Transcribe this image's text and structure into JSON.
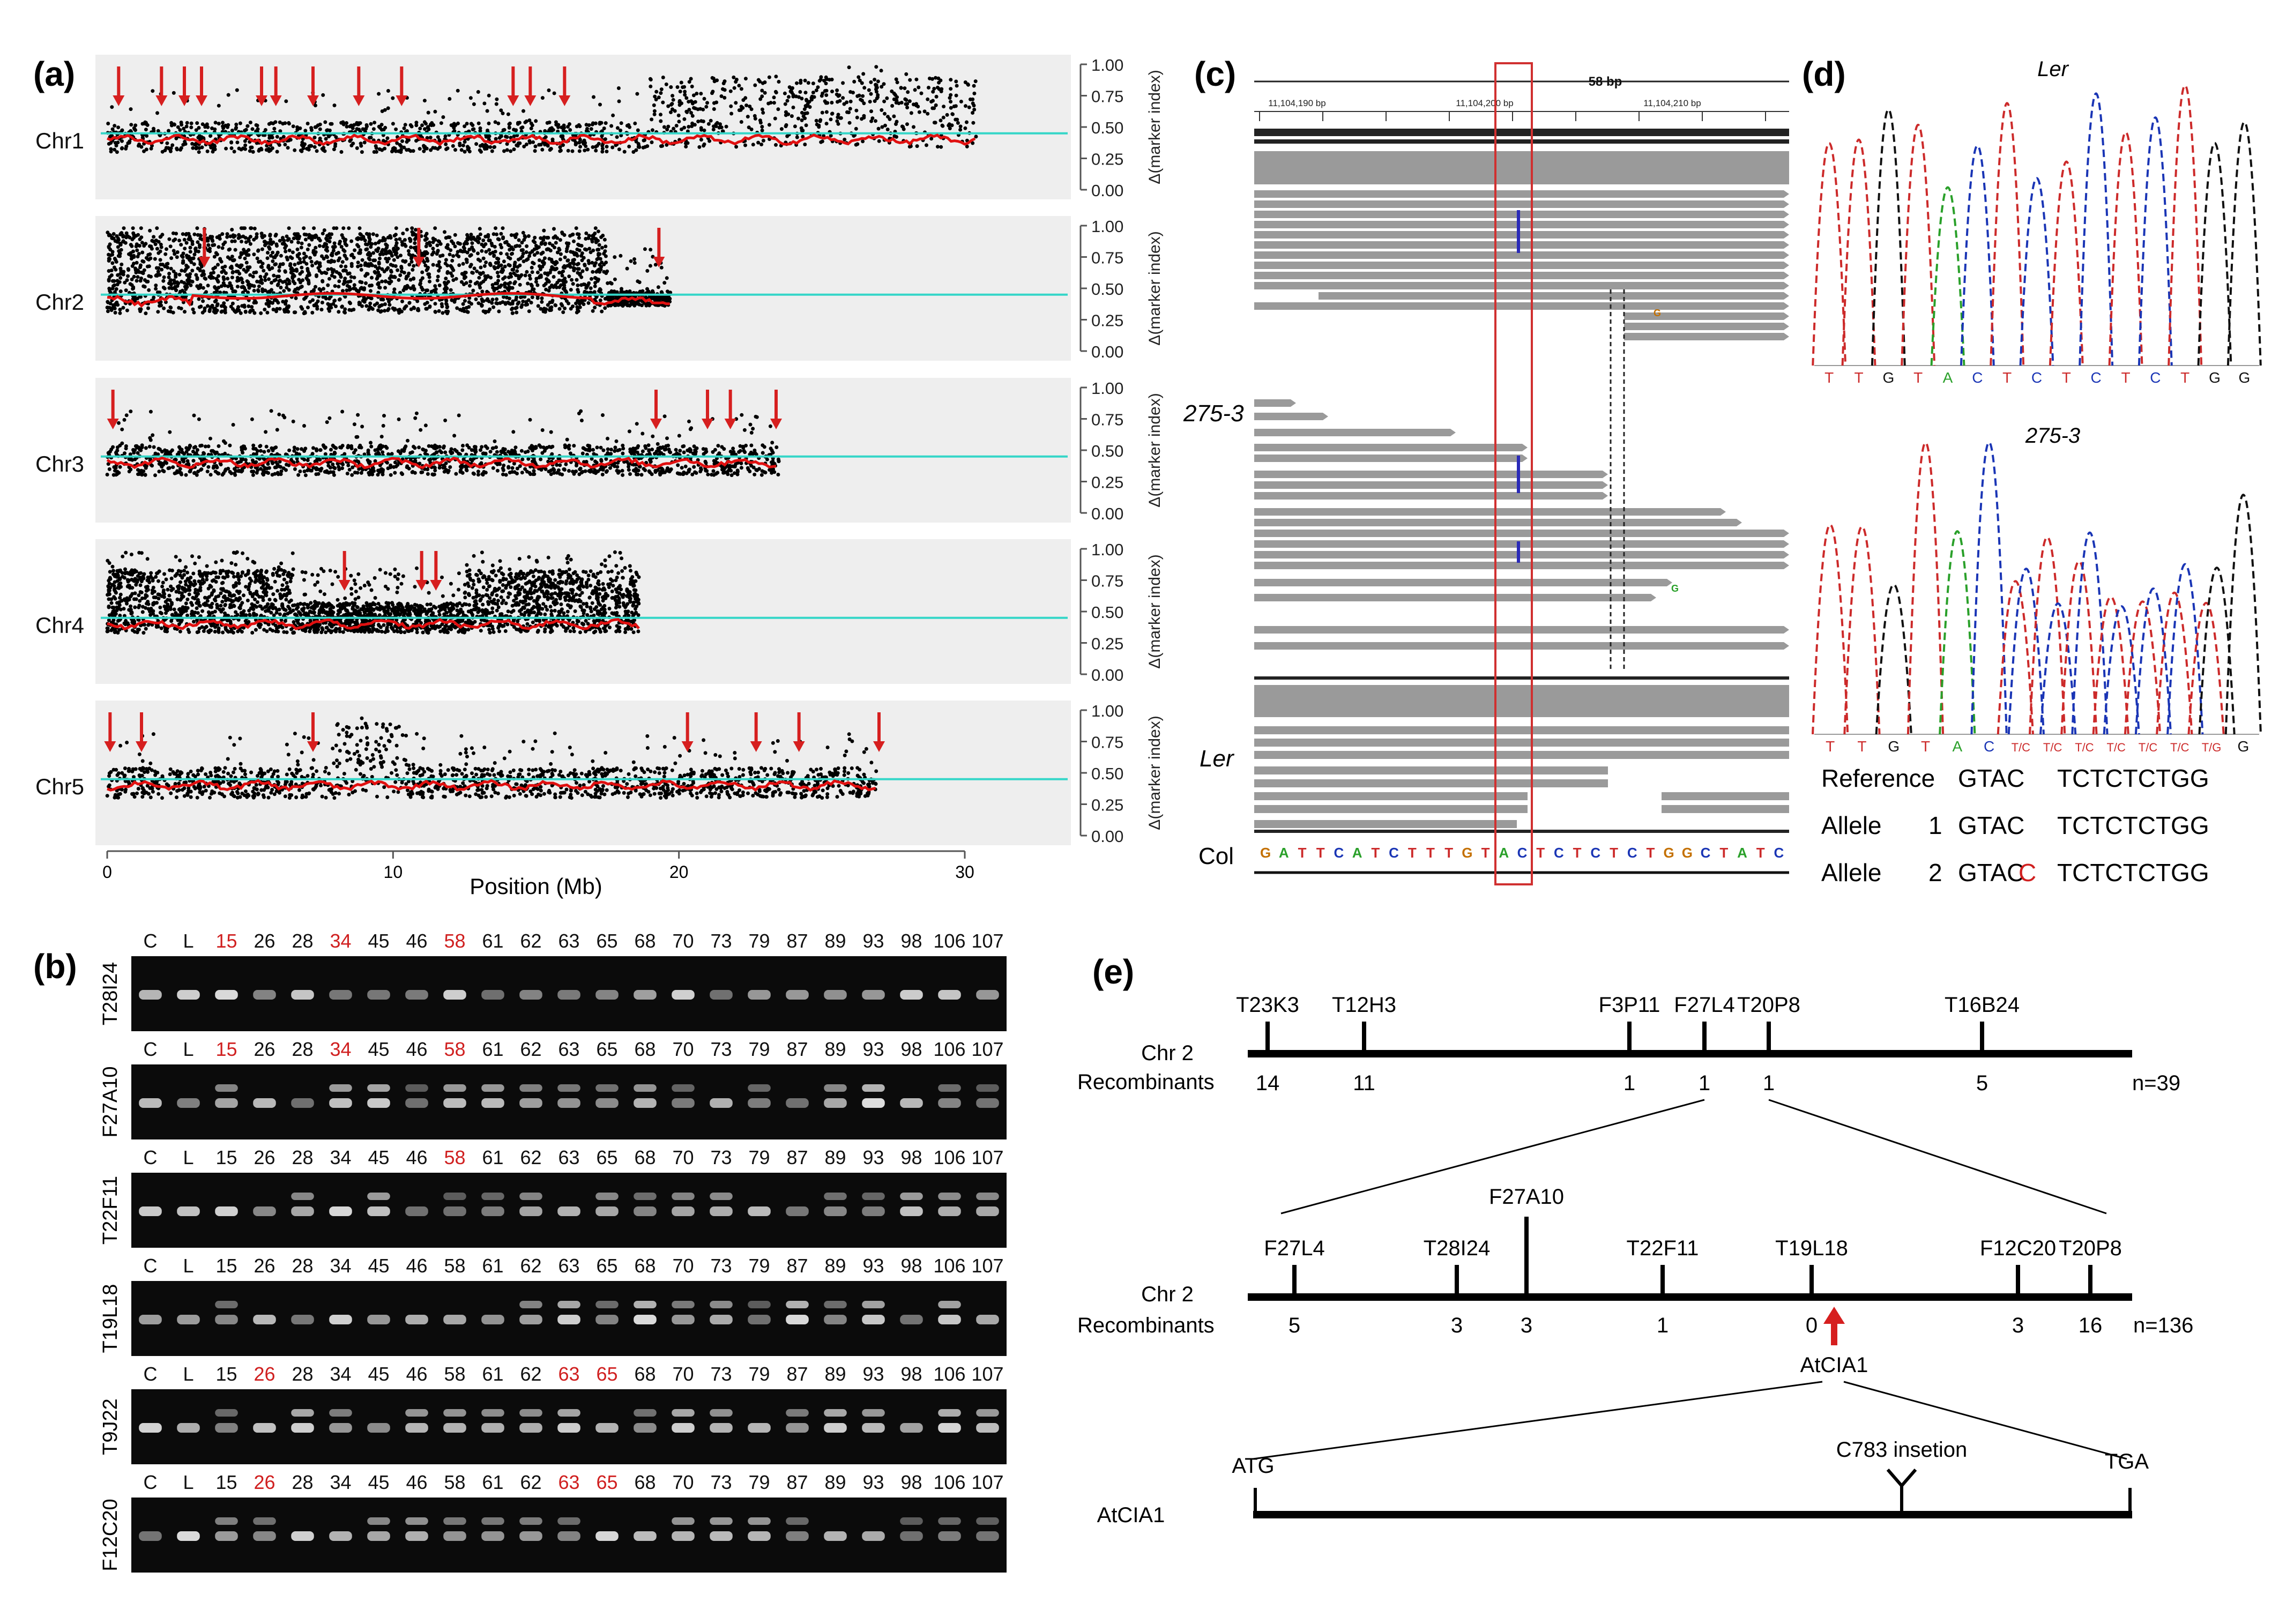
{
  "colors": {
    "marker": "#d61f1f",
    "threshold_line": "#35d6c8",
    "smooth_line": "#e01010",
    "panel_bg": "#eeeeee",
    "gel_bg": "#0b0b0b",
    "band": "#e9e9e9",
    "read_gray": "#9a9a9a",
    "highlight": "#d03030",
    "trace_T": "#cc2a2a",
    "trace_C": "#1a35b5",
    "trace_G": "#111111",
    "trace_A": "#2aa02a"
  },
  "panel_labels": {
    "a": "(a)",
    "b": "(b)",
    "c": "(c)",
    "d": "(d)",
    "e": "(e)"
  },
  "panel_a": {
    "chart_data": {
      "type": "scatter",
      "xlabel": "Position (Mb)",
      "ylabel": "Δ(marker index)",
      "xticks": [
        "0",
        "10",
        "20",
        "30"
      ],
      "xlim": [
        0,
        33
      ],
      "ylim": [
        0,
        1
      ],
      "yticks": [
        "1.00",
        "0.75",
        "0.50",
        "0.25",
        "0.00"
      ],
      "threshold": 0.45,
      "chromosomes": [
        {
          "name": "Chr1",
          "length": 30.4,
          "arrows_mb": [
            0.4,
            1.9,
            2.7,
            3.3,
            5.4,
            5.9,
            7.2,
            8.8,
            10.3,
            14.2,
            14.8,
            16.0
          ]
        },
        {
          "name": "Chr2",
          "length": 19.7,
          "arrows_mb": [
            3.4,
            10.9,
            19.3
          ]
        },
        {
          "name": "Chr3",
          "length": 23.5,
          "arrows_mb": [
            0.2,
            19.2,
            21.0,
            21.8,
            23.4
          ]
        },
        {
          "name": "Chr4",
          "length": 18.6,
          "arrows_mb": [
            8.3,
            11.0,
            11.5
          ]
        },
        {
          "name": "Chr5",
          "length": 26.9,
          "arrows_mb": [
            0.1,
            1.2,
            7.2,
            20.3,
            22.7,
            24.2,
            27.0
          ]
        }
      ]
    }
  },
  "panel_b": {
    "rows": [
      {
        "marker": "T28I24",
        "lanes": [
          {
            "t": "C",
            "r": false
          },
          {
            "t": "L",
            "r": false
          },
          {
            "t": "15",
            "r": true
          },
          {
            "t": "26",
            "r": false
          },
          {
            "t": "28",
            "r": false
          },
          {
            "t": "34",
            "r": true
          },
          {
            "t": "45",
            "r": false
          },
          {
            "t": "46",
            "r": false
          },
          {
            "t": "58",
            "r": true
          },
          {
            "t": "61",
            "r": false
          },
          {
            "t": "62",
            "r": false
          },
          {
            "t": "63",
            "r": false
          },
          {
            "t": "65",
            "r": false
          },
          {
            "t": "68",
            "r": false
          },
          {
            "t": "70",
            "r": false
          },
          {
            "t": "73",
            "r": false
          },
          {
            "t": "79",
            "r": false
          },
          {
            "t": "87",
            "r": false
          },
          {
            "t": "89",
            "r": false
          },
          {
            "t": "93",
            "r": false
          },
          {
            "t": "98",
            "r": false
          },
          {
            "t": "106",
            "r": false
          },
          {
            "t": "107",
            "r": false
          }
        ]
      },
      {
        "marker": "F27A10",
        "lanes": [
          {
            "t": "C",
            "r": false
          },
          {
            "t": "L",
            "r": false
          },
          {
            "t": "15",
            "r": true
          },
          {
            "t": "26",
            "r": false
          },
          {
            "t": "28",
            "r": false
          },
          {
            "t": "34",
            "r": true
          },
          {
            "t": "45",
            "r": false
          },
          {
            "t": "46",
            "r": false
          },
          {
            "t": "58",
            "r": true
          },
          {
            "t": "61",
            "r": false
          },
          {
            "t": "62",
            "r": false
          },
          {
            "t": "63",
            "r": false
          },
          {
            "t": "65",
            "r": false
          },
          {
            "t": "68",
            "r": false
          },
          {
            "t": "70",
            "r": false
          },
          {
            "t": "73",
            "r": false
          },
          {
            "t": "79",
            "r": false
          },
          {
            "t": "87",
            "r": false
          },
          {
            "t": "89",
            "r": false
          },
          {
            "t": "93",
            "r": false
          },
          {
            "t": "98",
            "r": false
          },
          {
            "t": "106",
            "r": false
          },
          {
            "t": "107",
            "r": false
          }
        ]
      },
      {
        "marker": "T22F11",
        "lanes": [
          {
            "t": "C",
            "r": false
          },
          {
            "t": "L",
            "r": false
          },
          {
            "t": "15",
            "r": false
          },
          {
            "t": "26",
            "r": false
          },
          {
            "t": "28",
            "r": false
          },
          {
            "t": "34",
            "r": false
          },
          {
            "t": "45",
            "r": false
          },
          {
            "t": "46",
            "r": false
          },
          {
            "t": "58",
            "r": true
          },
          {
            "t": "61",
            "r": false
          },
          {
            "t": "62",
            "r": false
          },
          {
            "t": "63",
            "r": false
          },
          {
            "t": "65",
            "r": false
          },
          {
            "t": "68",
            "r": false
          },
          {
            "t": "70",
            "r": false
          },
          {
            "t": "73",
            "r": false
          },
          {
            "t": "79",
            "r": false
          },
          {
            "t": "87",
            "r": false
          },
          {
            "t": "89",
            "r": false
          },
          {
            "t": "93",
            "r": false
          },
          {
            "t": "98",
            "r": false
          },
          {
            "t": "106",
            "r": false
          },
          {
            "t": "107",
            "r": false
          }
        ]
      },
      {
        "marker": "T19L18",
        "lanes": [
          {
            "t": "C",
            "r": false
          },
          {
            "t": "L",
            "r": false
          },
          {
            "t": "15",
            "r": false
          },
          {
            "t": "26",
            "r": false
          },
          {
            "t": "28",
            "r": false
          },
          {
            "t": "34",
            "r": false
          },
          {
            "t": "45",
            "r": false
          },
          {
            "t": "46",
            "r": false
          },
          {
            "t": "58",
            "r": false
          },
          {
            "t": "61",
            "r": false
          },
          {
            "t": "62",
            "r": false
          },
          {
            "t": "63",
            "r": false
          },
          {
            "t": "65",
            "r": false
          },
          {
            "t": "68",
            "r": false
          },
          {
            "t": "70",
            "r": false
          },
          {
            "t": "73",
            "r": false
          },
          {
            "t": "79",
            "r": false
          },
          {
            "t": "87",
            "r": false
          },
          {
            "t": "89",
            "r": false
          },
          {
            "t": "93",
            "r": false
          },
          {
            "t": "98",
            "r": false
          },
          {
            "t": "106",
            "r": false
          },
          {
            "t": "107",
            "r": false
          }
        ]
      },
      {
        "marker": "T9J22",
        "lanes": [
          {
            "t": "C",
            "r": false
          },
          {
            "t": "L",
            "r": false
          },
          {
            "t": "15",
            "r": false
          },
          {
            "t": "26",
            "r": true
          },
          {
            "t": "28",
            "r": false
          },
          {
            "t": "34",
            "r": false
          },
          {
            "t": "45",
            "r": false
          },
          {
            "t": "46",
            "r": false
          },
          {
            "t": "58",
            "r": false
          },
          {
            "t": "61",
            "r": false
          },
          {
            "t": "62",
            "r": false
          },
          {
            "t": "63",
            "r": true
          },
          {
            "t": "65",
            "r": true
          },
          {
            "t": "68",
            "r": false
          },
          {
            "t": "70",
            "r": false
          },
          {
            "t": "73",
            "r": false
          },
          {
            "t": "79",
            "r": false
          },
          {
            "t": "87",
            "r": false
          },
          {
            "t": "89",
            "r": false
          },
          {
            "t": "93",
            "r": false
          },
          {
            "t": "98",
            "r": false
          },
          {
            "t": "106",
            "r": false
          },
          {
            "t": "107",
            "r": false
          }
        ]
      },
      {
        "marker": "F12C20",
        "lanes": [
          {
            "t": "C",
            "r": false
          },
          {
            "t": "L",
            "r": false
          },
          {
            "t": "15",
            "r": false
          },
          {
            "t": "26",
            "r": true
          },
          {
            "t": "28",
            "r": false
          },
          {
            "t": "34",
            "r": false
          },
          {
            "t": "45",
            "r": false
          },
          {
            "t": "46",
            "r": false
          },
          {
            "t": "58",
            "r": false
          },
          {
            "t": "61",
            "r": false
          },
          {
            "t": "62",
            "r": false
          },
          {
            "t": "63",
            "r": true
          },
          {
            "t": "65",
            "r": true
          },
          {
            "t": "68",
            "r": false
          },
          {
            "t": "70",
            "r": false
          },
          {
            "t": "73",
            "r": false
          },
          {
            "t": "79",
            "r": false
          },
          {
            "t": "87",
            "r": false
          },
          {
            "t": "89",
            "r": false
          },
          {
            "t": "93",
            "r": false
          },
          {
            "t": "98",
            "r": false
          },
          {
            "t": "106",
            "r": false
          },
          {
            "t": "107",
            "r": false
          }
        ]
      }
    ]
  },
  "panel_c": {
    "span": "58 bp",
    "ruler": [
      "11,104,190 bp",
      "11,104,200 bp",
      "11,104,210 bp"
    ],
    "track_labels": [
      "275-3",
      "Ler",
      "Col"
    ],
    "reference_seq": "GATTCATCTTTGTACTCTCTCTGGCTATC",
    "mismatch_1": "G",
    "mismatch_2": "G"
  },
  "panel_d": {
    "trace1_title": "Ler",
    "trace2_title": "275-3",
    "trace1_bases": [
      "T",
      "T",
      "G",
      "T",
      "A",
      "C",
      "T",
      "C",
      "T",
      "C",
      "T",
      "C",
      "T",
      "G",
      "G"
    ],
    "trace2_bases": [
      "T",
      "T",
      "G",
      "T",
      "A",
      "C",
      "T/C",
      "T/C",
      "T/C",
      "T/C",
      "T/C",
      "T/C",
      "T/G",
      "G"
    ],
    "alignment": [
      {
        "label": "Reference",
        "num": "",
        "left": "GTAC",
        "ins": "",
        "right": "TCTCTCTGG"
      },
      {
        "label": "Allele",
        "num": "1",
        "left": "GTAC",
        "ins": "",
        "right": "TCTCTCTGG"
      },
      {
        "label": "Allele",
        "num": "2",
        "left": "GTAC",
        "ins": "C",
        "right": "TCTCTCTGG"
      }
    ]
  },
  "panel_e": {
    "map1": {
      "chr_label": "Chr 2",
      "rec_label": "Recombinants",
      "markers": [
        "T23K3",
        "T12H3",
        "F3P11",
        "F27L4",
        "T20P8",
        "T16B24"
      ],
      "counts": [
        "14",
        "11",
        "1",
        "1",
        "1",
        "5"
      ],
      "n": "n=39"
    },
    "map2": {
      "chr_label": "Chr 2",
      "rec_label": "Recombinants",
      "markers": [
        "F27L4",
        "T28I24",
        "F27A10",
        "T22F11",
        "T19L18",
        "F12C20",
        "T20P8"
      ],
      "counts": [
        "5",
        "3",
        "3",
        "1",
        "0",
        "3",
        "16"
      ],
      "n": "n=136",
      "gene": "AtCIA1"
    },
    "gene_model": {
      "name": "AtCIA1",
      "start": "ATG",
      "end": "TGA",
      "insertion": "C783 insetion"
    }
  }
}
